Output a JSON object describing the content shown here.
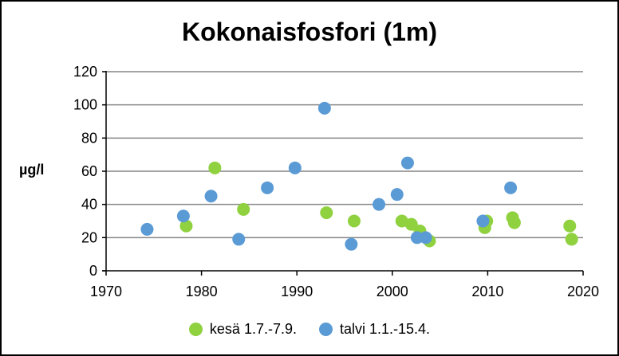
{
  "chart_data": {
    "type": "scatter",
    "title": "Kokonaisfosfori (1m)",
    "xlabel": "",
    "ylabel": "µg/l",
    "xlim": [
      1970,
      2020
    ],
    "ylim": [
      0,
      120
    ],
    "xticks": [
      1970,
      1980,
      1990,
      2000,
      2010,
      2020
    ],
    "yticks": [
      0,
      20,
      40,
      60,
      80,
      100,
      120
    ],
    "grid": "horizontal",
    "legend_position": "bottom",
    "series": [
      {
        "name": "kesä 1.7.-7.9.",
        "color": "#8fd13f",
        "points": [
          {
            "x": 1978.4,
            "y": 27
          },
          {
            "x": 1981.4,
            "y": 62
          },
          {
            "x": 1984.4,
            "y": 37
          },
          {
            "x": 1993.1,
            "y": 35
          },
          {
            "x": 1996.0,
            "y": 30
          },
          {
            "x": 2001.0,
            "y": 30
          },
          {
            "x": 2002.0,
            "y": 28
          },
          {
            "x": 2002.9,
            "y": 24
          },
          {
            "x": 2003.9,
            "y": 18
          },
          {
            "x": 2009.7,
            "y": 26
          },
          {
            "x": 2009.9,
            "y": 30
          },
          {
            "x": 2012.6,
            "y": 32
          },
          {
            "x": 2012.8,
            "y": 29
          },
          {
            "x": 2018.6,
            "y": 27
          },
          {
            "x": 2018.8,
            "y": 19
          }
        ]
      },
      {
        "name": "talvi 1.1.-15.4.",
        "color": "#5b9bd5",
        "points": [
          {
            "x": 1974.3,
            "y": 25
          },
          {
            "x": 1978.1,
            "y": 33
          },
          {
            "x": 1981.0,
            "y": 45
          },
          {
            "x": 1983.9,
            "y": 19
          },
          {
            "x": 1986.9,
            "y": 50
          },
          {
            "x": 1989.8,
            "y": 62
          },
          {
            "x": 1992.9,
            "y": 98
          },
          {
            "x": 1995.7,
            "y": 16
          },
          {
            "x": 1998.6,
            "y": 40
          },
          {
            "x": 2000.5,
            "y": 46
          },
          {
            "x": 2001.6,
            "y": 65
          },
          {
            "x": 2002.6,
            "y": 20
          },
          {
            "x": 2003.5,
            "y": 20
          },
          {
            "x": 2009.5,
            "y": 30
          },
          {
            "x": 2012.4,
            "y": 50
          }
        ]
      }
    ]
  }
}
